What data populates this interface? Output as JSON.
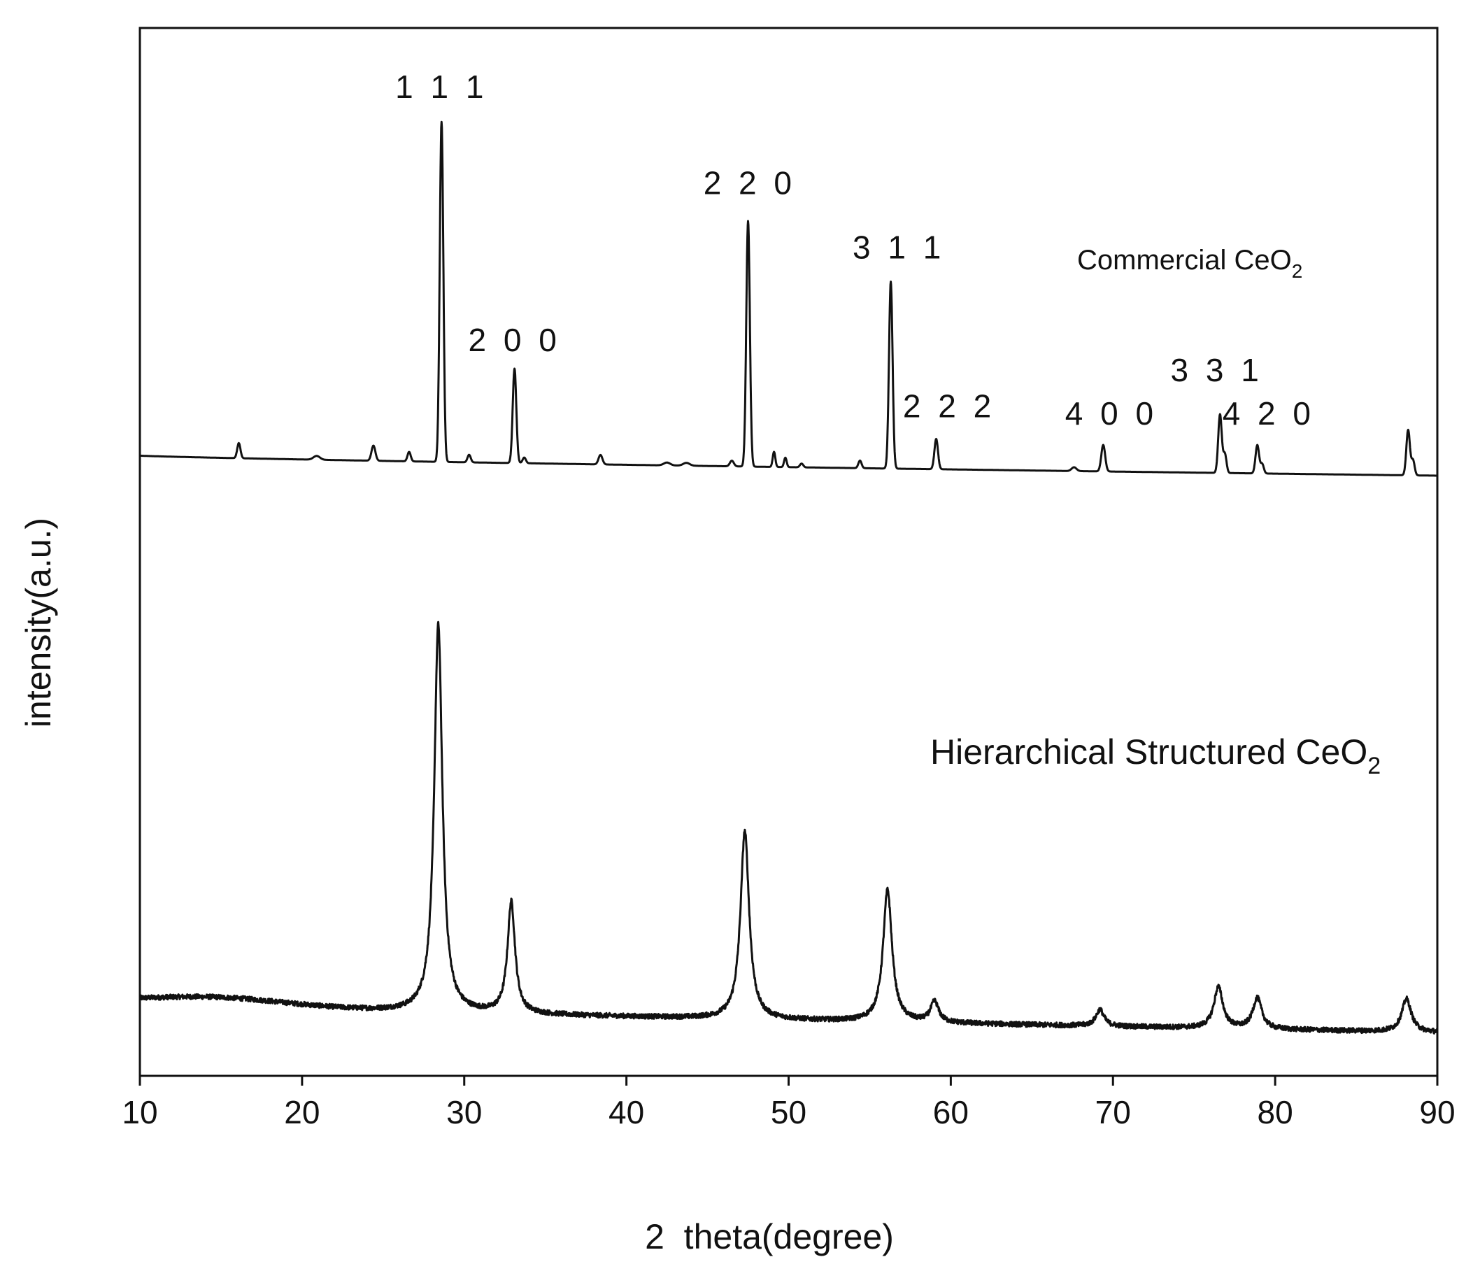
{
  "chart_data": {
    "type": "line",
    "xlabel": "2  theta(degree)",
    "ylabel": "intensity(a.u.)",
    "xlim": [
      10,
      90
    ],
    "xticks": [
      10,
      20,
      30,
      40,
      50,
      60,
      70,
      80,
      90
    ],
    "yticks": [],
    "grid": false,
    "series": [
      {
        "name": "Commercial CeO",
        "subscript": "2",
        "color": "#111111",
        "baseline": {
          "start": 1.06,
          "end": 0.0
        },
        "peaks": [
          {
            "x": 16.1,
            "h": 0.8,
            "w": 0.1
          },
          {
            "x": 20.9,
            "h": 0.2,
            "w": 0.2
          },
          {
            "x": 24.4,
            "h": 0.8,
            "w": 0.12
          },
          {
            "x": 26.6,
            "h": 0.5,
            "w": 0.1
          },
          {
            "x": 28.6,
            "h": 18.0,
            "w": 0.11
          },
          {
            "x": 30.3,
            "h": 0.4,
            "w": 0.1
          },
          {
            "x": 33.1,
            "h": 5.0,
            "w": 0.11
          },
          {
            "x": 33.7,
            "h": 0.3,
            "w": 0.1
          },
          {
            "x": 38.4,
            "h": 0.5,
            "w": 0.12
          },
          {
            "x": 42.5,
            "h": 0.15,
            "w": 0.2
          },
          {
            "x": 43.7,
            "h": 0.15,
            "w": 0.2
          },
          {
            "x": 46.5,
            "h": 0.3,
            "w": 0.12
          },
          {
            "x": 47.5,
            "h": 13.0,
            "w": 0.11
          },
          {
            "x": 49.1,
            "h": 0.8,
            "w": 0.08
          },
          {
            "x": 49.8,
            "h": 0.5,
            "w": 0.08
          },
          {
            "x": 50.8,
            "h": 0.2,
            "w": 0.1
          },
          {
            "x": 54.4,
            "h": 0.4,
            "w": 0.1
          },
          {
            "x": 56.3,
            "h": 9.9,
            "w": 0.11
          },
          {
            "x": 59.1,
            "h": 1.6,
            "w": 0.11
          },
          {
            "x": 67.6,
            "h": 0.2,
            "w": 0.15
          },
          {
            "x": 69.4,
            "h": 1.4,
            "w": 0.12
          },
          {
            "x": 76.6,
            "h": 3.1,
            "w": 0.11
          },
          {
            "x": 76.9,
            "h": 1.0,
            "w": 0.1
          },
          {
            "x": 78.9,
            "h": 1.5,
            "w": 0.11
          },
          {
            "x": 79.2,
            "h": 0.5,
            "w": 0.1
          },
          {
            "x": 88.2,
            "h": 2.4,
            "w": 0.11
          },
          {
            "x": 88.5,
            "h": 0.8,
            "w": 0.1
          }
        ]
      },
      {
        "name": "Hierarchical Structured CeO",
        "subscript": "2",
        "color": "#111111",
        "baseline": {
          "start": 1.4,
          "end": 0.0
        },
        "hump": {
          "x": 14.5,
          "h": 0.45,
          "w": 4.5
        },
        "noise": 0.12,
        "peaks": [
          {
            "x": 28.4,
            "h": 18.8,
            "w": 0.3
          },
          {
            "x": 32.9,
            "h": 5.4,
            "w": 0.28
          },
          {
            "x": 47.3,
            "h": 9.1,
            "w": 0.32
          },
          {
            "x": 56.1,
            "h": 6.4,
            "w": 0.33
          },
          {
            "x": 59.0,
            "h": 1.0,
            "w": 0.3
          },
          {
            "x": 69.2,
            "h": 0.8,
            "w": 0.3
          },
          {
            "x": 76.5,
            "h": 2.0,
            "w": 0.33
          },
          {
            "x": 78.9,
            "h": 1.5,
            "w": 0.33
          },
          {
            "x": 88.1,
            "h": 1.6,
            "w": 0.35
          }
        ]
      }
    ],
    "annotations": [
      {
        "text": "1 1 1",
        "x": 28.6,
        "h": 20.0
      },
      {
        "text": "2 0 0",
        "x": 33.1,
        "h": 6.6
      },
      {
        "text": "2 2  0",
        "x": 47.6,
        "h": 14.9
      },
      {
        "text": "3 1  1",
        "x": 56.8,
        "h": 11.5
      },
      {
        "text": "2 2 2",
        "x": 59.9,
        "h": 3.1
      },
      {
        "text": "4 0  0",
        "x": 69.9,
        "h": 2.7
      },
      {
        "text": "3 3 1",
        "x": 76.4,
        "h": 5.0
      },
      {
        "text": "4 2  0",
        "x": 79.6,
        "h": 2.7
      }
    ]
  }
}
